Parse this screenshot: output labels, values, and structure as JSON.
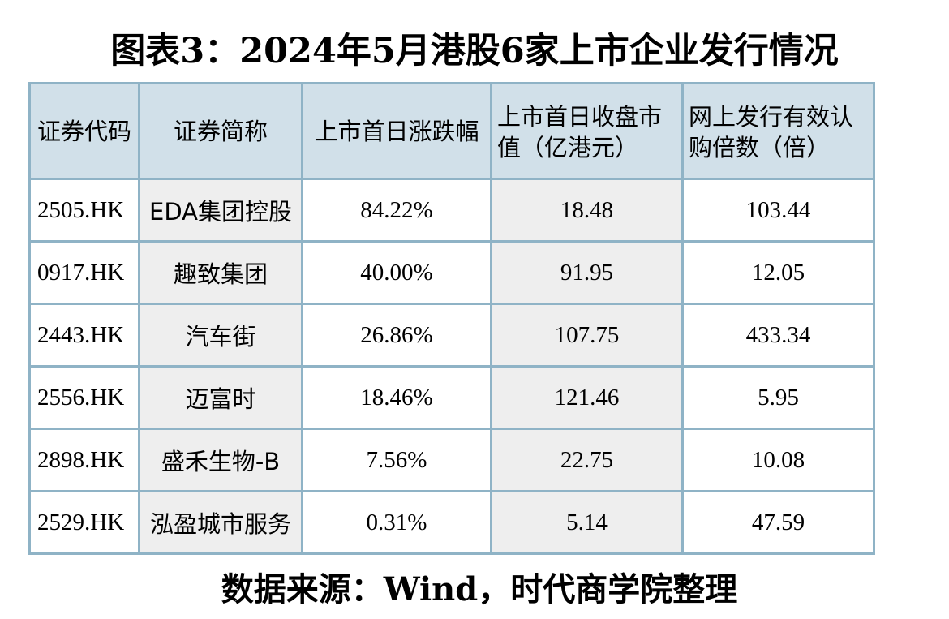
{
  "title": "图表3：2024年5月港股6家上市企业发行情况",
  "table": {
    "headers": {
      "code": "证券代码",
      "name": "证券简称",
      "change": "上市首日涨跌幅",
      "mktcap": "上市首日收盘市值（亿港元）",
      "oversub": "网上发行有效认购倍数（倍）"
    },
    "rows": [
      {
        "code": "2505.HK",
        "name": "EDA集团控股",
        "change": "84.22%",
        "mktcap": "18.48",
        "oversub": "103.44"
      },
      {
        "code": "0917.HK",
        "name": "趣致集团",
        "change": "40.00%",
        "mktcap": "91.95",
        "oversub": "12.05"
      },
      {
        "code": "2443.HK",
        "name": "汽车街",
        "change": "26.86%",
        "mktcap": "107.75",
        "oversub": "433.34"
      },
      {
        "code": "2556.HK",
        "name": "迈富时",
        "change": "18.46%",
        "mktcap": "121.46",
        "oversub": "5.95"
      },
      {
        "code": "2898.HK",
        "name": "盛禾生物-B",
        "change": "7.56%",
        "mktcap": "22.75",
        "oversub": "10.08"
      },
      {
        "code": "2529.HK",
        "name": "泓盈城市服务",
        "change": "0.31%",
        "mktcap": "5.14",
        "oversub": "47.59"
      }
    ]
  },
  "source": "数据来源：Wind，时代商学院整理",
  "colors": {
    "header_bg": "#d1e0e9",
    "border": "#8fb3c6",
    "shaded_cell": "#eeeeee"
  }
}
